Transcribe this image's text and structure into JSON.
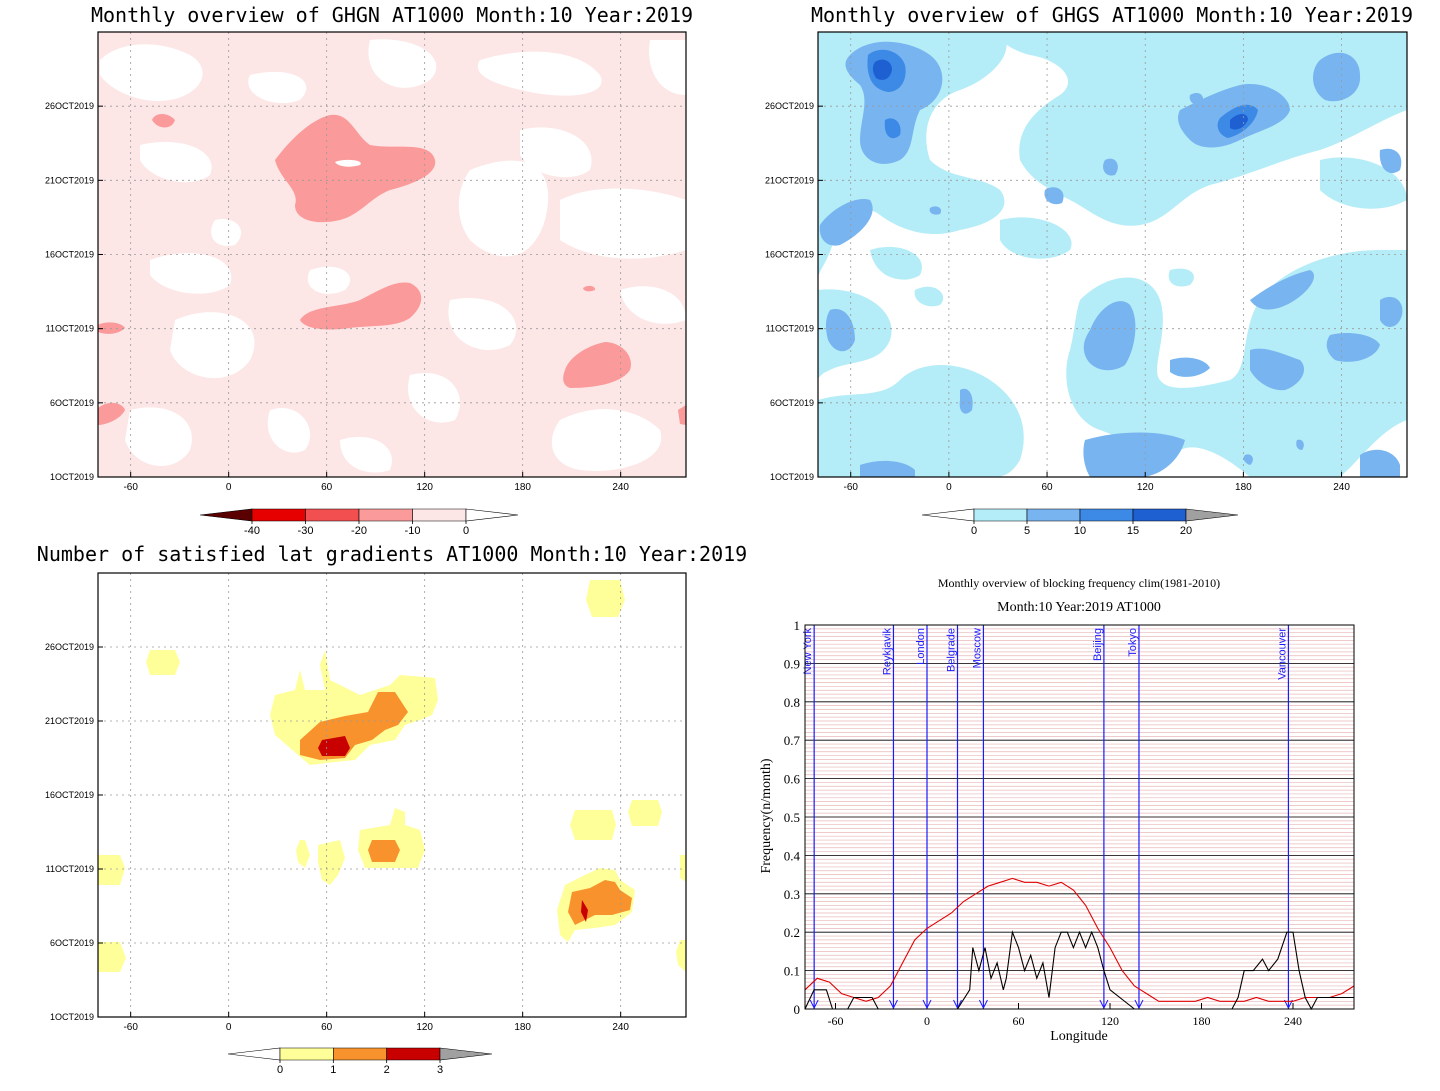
{
  "chart_data": [
    {
      "type": "heatmap",
      "title": "Monthly overview of GHGN AT1000 Month:10 Year:2019",
      "x_ticks": [
        -60,
        0,
        60,
        120,
        180,
        240
      ],
      "xlim": [
        -80,
        280
      ],
      "y_ticks": [
        "1OCT2019",
        "6OCT2019",
        "11OCT2019",
        "16OCT2019",
        "21OCT2019",
        "26OCT2019"
      ],
      "y_tick_days": [
        1,
        6,
        11,
        16,
        21,
        26
      ],
      "ylim_days": [
        1,
        31
      ],
      "colorbar": {
        "labels": [
          "-40",
          "-30",
          "-20",
          "-10",
          "0"
        ],
        "colors": [
          "#5a0000",
          "#e60000",
          "#f25050",
          "#fa9a9a",
          "#fde6e6",
          "#ffffff"
        ]
      },
      "grid": true
    },
    {
      "type": "heatmap",
      "title": "Monthly overview of GHGS AT1000 Month:10 Year:2019",
      "x_ticks": [
        -60,
        0,
        60,
        120,
        180,
        240
      ],
      "xlim": [
        -80,
        280
      ],
      "y_ticks": [
        "1OCT2019",
        "6OCT2019",
        "11OCT2019",
        "16OCT2019",
        "21OCT2019",
        "26OCT2019"
      ],
      "y_tick_days": [
        1,
        6,
        11,
        16,
        21,
        26
      ],
      "ylim_days": [
        1,
        31
      ],
      "colorbar": {
        "labels": [
          "0",
          "5",
          "10",
          "15",
          "20"
        ],
        "colors": [
          "#ffffff",
          "#b4edf7",
          "#78b4f0",
          "#3c8ae6",
          "#1e5fd2",
          "#a0a0a0"
        ]
      },
      "grid": true
    },
    {
      "type": "heatmap",
      "title": "Number of satisfied lat gradients AT1000 Month:10 Year:2019",
      "x_ticks": [
        -60,
        0,
        60,
        120,
        180,
        240
      ],
      "xlim": [
        -80,
        280
      ],
      "y_ticks": [
        "1OCT2019",
        "6OCT2019",
        "11OCT2019",
        "16OCT2019",
        "21OCT2019",
        "26OCT2019"
      ],
      "y_tick_days": [
        1,
        6,
        11,
        16,
        21,
        26
      ],
      "ylim_days": [
        1,
        31
      ],
      "colorbar": {
        "labels": [
          "0",
          "1",
          "2",
          "3"
        ],
        "colors": [
          "#ffffff",
          "#ffff99",
          "#f7922d",
          "#c80000",
          "#a0a0a0"
        ]
      },
      "grid": true
    },
    {
      "type": "line",
      "title": "Monthly overview of blocking frequency clim(1981-2010)",
      "subtitle": "Month:10 Year:2019  AT1000",
      "xlabel": "Longitude",
      "ylabel": "Frequency(n/month)",
      "xlim": [
        -80,
        280
      ],
      "ylim": [
        0,
        1
      ],
      "x_ticks": [
        -60,
        0,
        60,
        120,
        180,
        240
      ],
      "y_ticks": [
        "0",
        "0.1",
        "0.2",
        "0.3",
        "0.4",
        "0.5",
        "0.6",
        "0.7",
        "0.8",
        "0.9",
        "1"
      ],
      "grid": true,
      "cities": [
        {
          "name": "New York",
          "lon": -74
        },
        {
          "name": "Reykjavik",
          "lon": -22
        },
        {
          "name": "London",
          "lon": 0
        },
        {
          "name": "Belgrade",
          "lon": 20
        },
        {
          "name": "Moscow",
          "lon": 37
        },
        {
          "name": "Beijing",
          "lon": 116
        },
        {
          "name": "Tokyo",
          "lon": 139
        },
        {
          "name": "Vancouver",
          "lon": 237
        }
      ],
      "series": [
        {
          "color": "#e00000",
          "x": [
            -80,
            -72,
            -64,
            -56,
            -48,
            -40,
            -32,
            -24,
            -16,
            -8,
            0,
            8,
            16,
            24,
            32,
            40,
            48,
            56,
            64,
            72,
            80,
            88,
            96,
            104,
            112,
            120,
            128,
            136,
            144,
            152,
            160,
            168,
            176,
            184,
            192,
            200,
            208,
            216,
            224,
            232,
            240,
            248,
            256,
            264,
            272,
            280
          ],
          "y": [
            0.05,
            0.08,
            0.07,
            0.04,
            0.03,
            0.02,
            0.03,
            0.06,
            0.12,
            0.18,
            0.21,
            0.23,
            0.25,
            0.28,
            0.3,
            0.32,
            0.33,
            0.34,
            0.33,
            0.33,
            0.32,
            0.33,
            0.31,
            0.27,
            0.21,
            0.16,
            0.1,
            0.06,
            0.04,
            0.02,
            0.02,
            0.02,
            0.02,
            0.03,
            0.02,
            0.02,
            0.02,
            0.03,
            0.02,
            0.02,
            0.02,
            0.03,
            0.03,
            0.03,
            0.04,
            0.06
          ]
        },
        {
          "color": "#000000",
          "x": [
            -80,
            -74,
            -70,
            -66,
            -62,
            -58,
            -52,
            -48,
            -36,
            -32,
            -28,
            -22,
            -20,
            0,
            20,
            28,
            30,
            34,
            38,
            42,
            46,
            50,
            52,
            56,
            60,
            64,
            68,
            72,
            76,
            80,
            84,
            88,
            92,
            96,
            100,
            104,
            108,
            112,
            116,
            120,
            136,
            140,
            200,
            204,
            208,
            214,
            220,
            224,
            230,
            236,
            240,
            244,
            248,
            252,
            256,
            264,
            272,
            280
          ],
          "y": [
            0,
            0.05,
            0.05,
            0.05,
            0,
            0,
            0,
            0.03,
            0.03,
            0,
            0,
            0,
            0,
            0,
            0,
            0.05,
            0.16,
            0.1,
            0.16,
            0.08,
            0.12,
            0.05,
            0.08,
            0.2,
            0.16,
            0.1,
            0.14,
            0.08,
            0.12,
            0.03,
            0.16,
            0.2,
            0.2,
            0.16,
            0.2,
            0.16,
            0.2,
            0.16,
            0.1,
            0.05,
            0,
            0,
            0,
            0.03,
            0.1,
            0.1,
            0.13,
            0.1,
            0.13,
            0.2,
            0.2,
            0.1,
            0.03,
            0,
            0.03,
            0.03,
            0.03,
            0.03
          ]
        }
      ]
    }
  ]
}
